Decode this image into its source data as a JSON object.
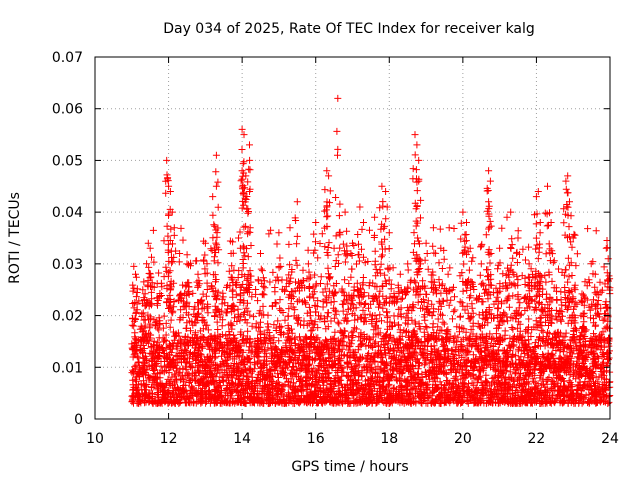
{
  "chart_data": {
    "type": "scatter",
    "title": "Day 034 of 2025, Rate Of TEC Index for receiver kalg",
    "xlabel": "GPS time / hours",
    "ylabel": "ROTI / TECUs",
    "xlim": [
      10,
      24
    ],
    "ylim": [
      0,
      0.07
    ],
    "x_ticks": [
      10,
      12,
      14,
      16,
      18,
      20,
      22,
      24
    ],
    "x_tick_labels": [
      "10",
      "12",
      "14",
      "16",
      "18",
      "20",
      "22",
      "24"
    ],
    "y_ticks": [
      0,
      0.01,
      0.02,
      0.03,
      0.04,
      0.05,
      0.06,
      0.07
    ],
    "y_tick_labels": [
      "0",
      "0.01",
      "0.02",
      "0.03",
      "0.04",
      "0.05",
      "0.06",
      "0.07"
    ],
    "grid": true,
    "marker": "+",
    "color": "#ff0000",
    "series": [
      {
        "name": "ROTI",
        "data_start": 11.0,
        "data_end": 24.0,
        "typical_range": [
          0.003,
          0.03
        ],
        "points": [
          [
            11.1,
            0.028
          ],
          [
            11.3,
            0.025
          ],
          [
            11.45,
            0.034
          ],
          [
            11.5,
            0.033
          ],
          [
            11.7,
            0.022
          ],
          [
            11.95,
            0.05
          ],
          [
            12.0,
            0.045
          ],
          [
            12.05,
            0.044
          ],
          [
            12.1,
            0.04
          ],
          [
            12.3,
            0.032
          ],
          [
            12.5,
            0.03
          ],
          [
            12.8,
            0.028
          ],
          [
            13.0,
            0.034
          ],
          [
            13.2,
            0.043
          ],
          [
            13.3,
            0.051
          ],
          [
            13.3,
            0.045
          ],
          [
            13.7,
            0.032
          ],
          [
            13.9,
            0.035
          ],
          [
            14.0,
            0.056
          ],
          [
            14.05,
            0.055
          ],
          [
            14.0,
            0.048
          ],
          [
            14.1,
            0.047
          ],
          [
            14.2,
            0.053
          ],
          [
            14.2,
            0.044
          ],
          [
            14.5,
            0.032
          ],
          [
            15.0,
            0.036
          ],
          [
            15.3,
            0.037
          ],
          [
            15.5,
            0.042
          ],
          [
            15.8,
            0.03
          ],
          [
            16.0,
            0.038
          ],
          [
            16.3,
            0.048
          ],
          [
            16.35,
            0.047
          ],
          [
            16.3,
            0.041
          ],
          [
            16.5,
            0.033
          ],
          [
            16.6,
            0.062
          ],
          [
            16.8,
            0.04
          ],
          [
            17.0,
            0.034
          ],
          [
            17.2,
            0.041
          ],
          [
            17.3,
            0.038
          ],
          [
            17.6,
            0.039
          ],
          [
            17.8,
            0.045
          ],
          [
            17.9,
            0.044
          ],
          [
            18.0,
            0.036
          ],
          [
            18.3,
            0.028
          ],
          [
            18.5,
            0.03
          ],
          [
            18.7,
            0.055
          ],
          [
            18.75,
            0.053
          ],
          [
            18.8,
            0.05
          ],
          [
            18.8,
            0.046
          ],
          [
            19.0,
            0.034
          ],
          [
            19.2,
            0.037
          ],
          [
            19.4,
            0.033
          ],
          [
            19.6,
            0.028
          ],
          [
            20.0,
            0.04
          ],
          [
            20.1,
            0.038
          ],
          [
            20.2,
            0.033
          ],
          [
            20.5,
            0.03
          ],
          [
            20.7,
            0.048
          ],
          [
            20.75,
            0.046
          ],
          [
            20.7,
            0.042
          ],
          [
            21.0,
            0.033
          ],
          [
            21.2,
            0.039
          ],
          [
            21.3,
            0.04
          ],
          [
            21.5,
            0.035
          ],
          [
            21.8,
            0.03
          ],
          [
            22.0,
            0.043
          ],
          [
            22.05,
            0.044
          ],
          [
            22.1,
            0.036
          ],
          [
            22.3,
            0.045
          ],
          [
            22.4,
            0.038
          ],
          [
            22.6,
            0.029
          ],
          [
            22.8,
            0.046
          ],
          [
            22.85,
            0.047
          ],
          [
            22.9,
            0.042
          ],
          [
            23.0,
            0.035
          ],
          [
            23.3,
            0.022
          ],
          [
            23.6,
            0.028
          ],
          [
            23.9,
            0.033
          ],
          [
            23.95,
            0.031
          ]
        ]
      }
    ]
  }
}
